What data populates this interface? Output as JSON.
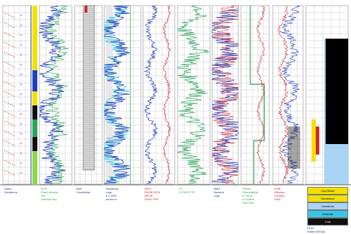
{
  "colors": {
    "grid": "#b9b9b9",
    "blue": "#1f3fbf",
    "cyan": "#35c7e8",
    "green": "#2aa45a",
    "red": "#d2262e",
    "black": "#111111",
    "yellow": "#f2e100",
    "lightblue": "#a9d4f3",
    "lime": "#8bd94a"
  },
  "tracks": [
    {
      "id": "depth",
      "header": "Depth\nDeviations",
      "header_color": "#1a3b7a"
    },
    {
      "id": "rop",
      "header": "ROP\nRoad Velocity\nGR\nGamma Ray",
      "header_color": "#2aa45a"
    },
    {
      "id": "wellbore",
      "header": "Well\nCompletion",
      "header_color": "#1a3b7a"
    },
    {
      "id": "resistivity",
      "header": "Resistivity\nLogs\n0.2     2000\nohmm m",
      "header_color": "#1a3b7a"
    },
    {
      "id": "density",
      "header": "NPHI\nRHOB  DPHI\nNPOR\nDRHO  PEF",
      "header_color": "#d2262e"
    },
    {
      "id": "sonic",
      "header": "DT\nDTSM  DTST",
      "header_color": "#2aa45a"
    },
    {
      "id": "nmr",
      "header": "NMR\nSpectral\nLogs",
      "header_color": "#1a3b7a"
    },
    {
      "id": "perm",
      "header": "PERM\nPermeability\nK-Timur\nK-Coates\nSwirr  BVI",
      "header_color": "#2aa45a"
    },
    {
      "id": "porosity",
      "header": "PHIE\nEffective\nPorosity\nSWE",
      "header_color": "#d2262e"
    },
    {
      "id": "lithology",
      "header": "",
      "header_color": "#1a3b7a"
    }
  ],
  "legend": [
    {
      "label": "Clay/Shale",
      "color": "#f2e100"
    },
    {
      "label": "Sandstone",
      "color": "#f2e100"
    },
    {
      "label": "Limestone",
      "color": "#a9d4f3"
    },
    {
      "label": "Dolomite",
      "color": "#35c7e8"
    },
    {
      "label": "Coal",
      "color": "#111111"
    }
  ],
  "legend_footer": "Fluid\nWater/Oil/Gas"
}
